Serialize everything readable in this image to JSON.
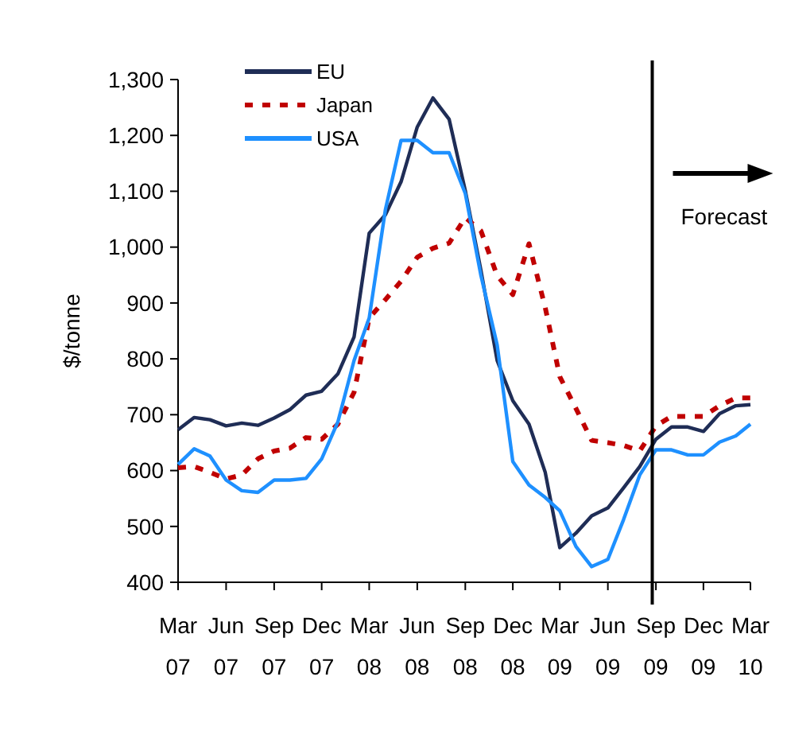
{
  "chart_data": {
    "type": "line",
    "ylabel": "$/tonne",
    "x": [
      "2007-03",
      "2007-04",
      "2007-05",
      "2007-06",
      "2007-07",
      "2007-08",
      "2007-09",
      "2007-10",
      "2007-11",
      "2007-12",
      "2008-01",
      "2008-02",
      "2008-03",
      "2008-04",
      "2008-05",
      "2008-06",
      "2008-07",
      "2008-08",
      "2008-09",
      "2008-10",
      "2008-11",
      "2008-12",
      "2009-01",
      "2009-02",
      "2009-03",
      "2009-04",
      "2009-05",
      "2009-06",
      "2009-07",
      "2009-08",
      "2009-09",
      "2009-10",
      "2009-11",
      "2009-12",
      "2010-01",
      "2010-02",
      "2010-03"
    ],
    "series": [
      {
        "name": "EU",
        "color": "#1f2d56",
        "line_style": "solid",
        "values": [
          673,
          695,
          691,
          680,
          685,
          681,
          694,
          709,
          735,
          742,
          773,
          839,
          1025,
          1058,
          1117,
          1215,
          1267,
          1229,
          1101,
          958,
          797,
          725,
          683,
          597,
          462,
          488,
          519,
          533,
          569,
          607,
          656,
          678,
          678,
          670,
          702,
          716,
          718
        ]
      },
      {
        "name": "Japan",
        "color": "#c00000",
        "line_style": "dotted",
        "values": [
          605,
          607,
          597,
          585,
          592,
          621,
          635,
          640,
          659,
          656,
          683,
          740,
          873,
          906,
          939,
          982,
          998,
          1007,
          1053,
          1029,
          949,
          915,
          1006,
          892,
          768,
          711,
          654,
          650,
          645,
          635,
          680,
          697,
          697,
          697,
          716,
          730,
          730
        ]
      },
      {
        "name": "USA",
        "color": "#1e90ff",
        "line_style": "solid",
        "values": [
          611,
          639,
          626,
          583,
          564,
          561,
          583,
          583,
          586,
          621,
          687,
          797,
          873,
          1067,
          1191,
          1191,
          1169,
          1169,
          1096,
          949,
          825,
          616,
          574,
          552,
          528,
          464,
          428,
          441,
          512,
          592,
          637,
          637,
          628,
          628,
          651,
          662,
          683
        ]
      }
    ],
    "xlim": [
      "2007-03",
      "2010-03"
    ],
    "xticks": [
      {
        "value": "2007-03",
        "label": "Mar 07"
      },
      {
        "value": "2007-06",
        "label": "Jun 07"
      },
      {
        "value": "2007-09",
        "label": "Sep 07"
      },
      {
        "value": "2007-12",
        "label": "Dec 07"
      },
      {
        "value": "2008-03",
        "label": "Mar 08"
      },
      {
        "value": "2008-06",
        "label": "Jun 08"
      },
      {
        "value": "2008-09",
        "label": "Sep 08"
      },
      {
        "value": "2008-12",
        "label": "Dec 08"
      },
      {
        "value": "2009-03",
        "label": "Mar 09"
      },
      {
        "value": "2009-06",
        "label": "Jun 09"
      },
      {
        "value": "2009-09",
        "label": "Sep 09"
      },
      {
        "value": "2009-12",
        "label": "Dec 09"
      },
      {
        "value": "2010-03",
        "label": "Mar 10"
      }
    ],
    "ylim": [
      400,
      1300
    ],
    "yticks": [
      {
        "value": 400,
        "label": "400"
      },
      {
        "value": 500,
        "label": "500"
      },
      {
        "value": 600,
        "label": "600"
      },
      {
        "value": 700,
        "label": "700"
      },
      {
        "value": 800,
        "label": "800"
      },
      {
        "value": 900,
        "label": "900"
      },
      {
        "value": 1000,
        "label": "1,000"
      },
      {
        "value": 1100,
        "label": "1,100"
      },
      {
        "value": 1200,
        "label": "1,200"
      },
      {
        "value": 1300,
        "label": "1,300"
      }
    ],
    "ref_lines": [
      {
        "axis": "x",
        "value": "2009-08-25",
        "label": "Forecast",
        "color": "#000000"
      }
    ],
    "grid": false,
    "legend": "top left",
    "marker": "none"
  }
}
